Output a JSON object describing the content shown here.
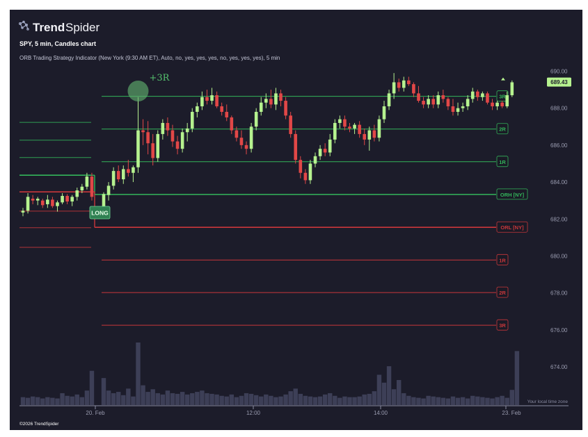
{
  "header": {
    "brand": "TrendSpider",
    "brand_bold": "Trend",
    "brand_light": "Spider",
    "subtitle": "SPY, 5 min, Candles chart",
    "indicator": "ORB Trading Strategy Indicator (New York (9:30 AM ET), Auto, no, yes, yes, yes, no, yes, yes, yes), 5 min"
  },
  "footer": {
    "copyright": "©2026 TrendSpider",
    "timezone_note": "Your local time zone"
  },
  "colors": {
    "background": "#1c1c2a",
    "bullish": "#b6f28f",
    "bearish": "#e14747",
    "orb_green": "#33b55a",
    "orb_red": "#c9373b",
    "volume": "#3d3f57",
    "price_tag": "#b6f28f"
  },
  "chart_data": {
    "type": "candlestick",
    "symbol": "SPY",
    "interval": "5 min",
    "ylim": [
      673.0,
      690.6
    ],
    "y_ticks": [
      "690.00",
      "688.00",
      "686.00",
      "684.00",
      "682.00",
      "680.00",
      "678.00",
      "676.00",
      "674.00"
    ],
    "x_ticks": [
      "20. Feb",
      "12:00",
      "14:00",
      "23. Feb"
    ],
    "current_price": "689.43",
    "marker_label": "LONG",
    "target_label": "+3R",
    "prev_day_candles": [
      {
        "o": 682.35,
        "h": 682.6,
        "l": 682.15,
        "c": 682.45
      },
      {
        "o": 682.45,
        "h": 683.4,
        "l": 682.3,
        "c": 683.2
      },
      {
        "o": 683.1,
        "h": 683.3,
        "l": 682.8,
        "c": 683.0
      },
      {
        "o": 683.0,
        "h": 683.2,
        "l": 682.75,
        "c": 683.1
      },
      {
        "o": 683.0,
        "h": 683.1,
        "l": 682.6,
        "c": 682.75
      },
      {
        "o": 682.8,
        "h": 683.3,
        "l": 682.6,
        "c": 683.05
      },
      {
        "o": 683.05,
        "h": 683.2,
        "l": 682.6,
        "c": 682.7
      },
      {
        "o": 682.7,
        "h": 683.0,
        "l": 682.4,
        "c": 682.9
      },
      {
        "o": 682.9,
        "h": 683.4,
        "l": 682.8,
        "c": 683.25
      },
      {
        "o": 683.25,
        "h": 683.35,
        "l": 682.8,
        "c": 682.95
      },
      {
        "o": 682.95,
        "h": 683.3,
        "l": 682.7,
        "c": 683.2
      },
      {
        "o": 683.2,
        "h": 683.7,
        "l": 683.0,
        "c": 683.55
      },
      {
        "o": 683.55,
        "h": 683.9,
        "l": 683.4,
        "c": 683.75
      },
      {
        "o": 683.75,
        "h": 684.5,
        "l": 683.6,
        "c": 684.3
      },
      {
        "o": 684.3,
        "h": 684.5,
        "l": 683.0,
        "c": 683.2
      }
    ],
    "day_candles": [
      {
        "o": 682.4,
        "h": 683.45,
        "l": 682.1,
        "c": 683.35
      },
      {
        "o": 683.3,
        "h": 684.0,
        "l": 683.0,
        "c": 683.8
      },
      {
        "o": 683.8,
        "h": 684.8,
        "l": 683.6,
        "c": 684.6
      },
      {
        "o": 684.6,
        "h": 684.9,
        "l": 684.0,
        "c": 684.15
      },
      {
        "o": 684.15,
        "h": 684.9,
        "l": 683.9,
        "c": 684.7
      },
      {
        "o": 684.7,
        "h": 685.2,
        "l": 684.3,
        "c": 684.5
      },
      {
        "o": 684.5,
        "h": 684.9,
        "l": 684.0,
        "c": 684.8
      },
      {
        "o": 684.8,
        "h": 688.6,
        "l": 684.5,
        "c": 686.8
      },
      {
        "o": 686.8,
        "h": 687.4,
        "l": 686.0,
        "c": 686.7
      },
      {
        "o": 686.7,
        "h": 687.3,
        "l": 685.5,
        "c": 686.1
      },
      {
        "o": 686.1,
        "h": 686.6,
        "l": 684.9,
        "c": 685.3
      },
      {
        "o": 685.3,
        "h": 686.8,
        "l": 685.1,
        "c": 686.6
      },
      {
        "o": 686.6,
        "h": 687.4,
        "l": 686.3,
        "c": 687.2
      },
      {
        "o": 687.2,
        "h": 687.5,
        "l": 686.5,
        "c": 686.8
      },
      {
        "o": 686.8,
        "h": 687.1,
        "l": 685.9,
        "c": 686.2
      },
      {
        "o": 686.2,
        "h": 686.5,
        "l": 685.5,
        "c": 685.8
      },
      {
        "o": 685.8,
        "h": 686.9,
        "l": 685.6,
        "c": 686.7
      },
      {
        "o": 686.7,
        "h": 687.2,
        "l": 686.2,
        "c": 686.9
      },
      {
        "o": 686.9,
        "h": 688.0,
        "l": 686.7,
        "c": 687.8
      },
      {
        "o": 687.8,
        "h": 688.3,
        "l": 687.5,
        "c": 688.1
      },
      {
        "o": 688.1,
        "h": 688.9,
        "l": 687.9,
        "c": 688.6
      },
      {
        "o": 688.6,
        "h": 689.0,
        "l": 688.2,
        "c": 688.4
      },
      {
        "o": 688.4,
        "h": 689.1,
        "l": 688.2,
        "c": 688.7
      },
      {
        "o": 688.7,
        "h": 688.9,
        "l": 688.0,
        "c": 688.1
      },
      {
        "o": 688.1,
        "h": 688.3,
        "l": 687.6,
        "c": 687.8
      },
      {
        "o": 687.8,
        "h": 688.2,
        "l": 687.3,
        "c": 687.5
      },
      {
        "o": 687.5,
        "h": 687.6,
        "l": 686.6,
        "c": 686.8
      },
      {
        "o": 686.8,
        "h": 687.0,
        "l": 686.2,
        "c": 686.4
      },
      {
        "o": 686.4,
        "h": 686.8,
        "l": 685.8,
        "c": 686.0
      },
      {
        "o": 686.0,
        "h": 686.2,
        "l": 685.5,
        "c": 685.8
      },
      {
        "o": 685.8,
        "h": 687.2,
        "l": 685.6,
        "c": 687.0
      },
      {
        "o": 687.0,
        "h": 688.0,
        "l": 686.8,
        "c": 687.8
      },
      {
        "o": 687.8,
        "h": 688.6,
        "l": 687.6,
        "c": 688.3
      },
      {
        "o": 688.3,
        "h": 688.8,
        "l": 688.0,
        "c": 688.5
      },
      {
        "o": 688.5,
        "h": 689.0,
        "l": 688.0,
        "c": 688.2
      },
      {
        "o": 688.2,
        "h": 689.1,
        "l": 687.9,
        "c": 688.8
      },
      {
        "o": 688.8,
        "h": 689.0,
        "l": 688.1,
        "c": 688.4
      },
      {
        "o": 688.4,
        "h": 688.6,
        "l": 687.4,
        "c": 687.6
      },
      {
        "o": 687.6,
        "h": 687.8,
        "l": 686.4,
        "c": 686.6
      },
      {
        "o": 686.6,
        "h": 686.8,
        "l": 685.0,
        "c": 685.2
      },
      {
        "o": 685.2,
        "h": 685.4,
        "l": 684.2,
        "c": 684.5
      },
      {
        "o": 684.5,
        "h": 684.7,
        "l": 683.9,
        "c": 684.1
      },
      {
        "o": 684.1,
        "h": 685.2,
        "l": 683.9,
        "c": 685.0
      },
      {
        "o": 685.0,
        "h": 685.6,
        "l": 684.8,
        "c": 685.4
      },
      {
        "o": 685.4,
        "h": 686.0,
        "l": 685.2,
        "c": 685.8
      },
      {
        "o": 685.8,
        "h": 686.1,
        "l": 685.4,
        "c": 685.6
      },
      {
        "o": 685.6,
        "h": 686.6,
        "l": 685.4,
        "c": 686.3
      },
      {
        "o": 686.3,
        "h": 687.4,
        "l": 686.1,
        "c": 687.2
      },
      {
        "o": 687.2,
        "h": 687.6,
        "l": 686.9,
        "c": 687.4
      },
      {
        "o": 687.4,
        "h": 687.6,
        "l": 686.8,
        "c": 687.0
      },
      {
        "o": 687.0,
        "h": 687.2,
        "l": 686.7,
        "c": 686.9
      },
      {
        "o": 686.9,
        "h": 687.2,
        "l": 686.6,
        "c": 687.1
      },
      {
        "o": 687.1,
        "h": 687.3,
        "l": 686.4,
        "c": 686.6
      },
      {
        "o": 686.6,
        "h": 686.9,
        "l": 686.0,
        "c": 686.3
      },
      {
        "o": 686.3,
        "h": 687.0,
        "l": 685.7,
        "c": 686.8
      },
      {
        "o": 686.8,
        "h": 687.1,
        "l": 686.2,
        "c": 686.4
      },
      {
        "o": 686.4,
        "h": 687.6,
        "l": 686.2,
        "c": 687.4
      },
      {
        "o": 687.4,
        "h": 688.4,
        "l": 687.2,
        "c": 688.1
      },
      {
        "o": 688.1,
        "h": 689.0,
        "l": 687.9,
        "c": 688.8
      },
      {
        "o": 688.8,
        "h": 689.9,
        "l": 688.5,
        "c": 689.4
      },
      {
        "o": 689.4,
        "h": 689.6,
        "l": 688.9,
        "c": 689.1
      },
      {
        "o": 689.1,
        "h": 689.7,
        "l": 688.9,
        "c": 689.5
      },
      {
        "o": 689.5,
        "h": 689.7,
        "l": 689.2,
        "c": 689.3
      },
      {
        "o": 689.3,
        "h": 689.4,
        "l": 688.6,
        "c": 688.8
      },
      {
        "o": 688.8,
        "h": 689.2,
        "l": 688.3,
        "c": 688.4
      },
      {
        "o": 688.4,
        "h": 688.6,
        "l": 688.0,
        "c": 688.2
      },
      {
        "o": 688.2,
        "h": 688.7,
        "l": 688.0,
        "c": 688.5
      },
      {
        "o": 688.5,
        "h": 688.7,
        "l": 688.0,
        "c": 688.2
      },
      {
        "o": 688.2,
        "h": 688.9,
        "l": 688.0,
        "c": 688.7
      },
      {
        "o": 688.7,
        "h": 689.0,
        "l": 688.3,
        "c": 688.5
      },
      {
        "o": 688.5,
        "h": 688.6,
        "l": 687.9,
        "c": 688.1
      },
      {
        "o": 688.1,
        "h": 688.5,
        "l": 687.6,
        "c": 687.8
      },
      {
        "o": 687.8,
        "h": 688.3,
        "l": 687.6,
        "c": 688.0
      },
      {
        "o": 688.0,
        "h": 688.3,
        "l": 687.8,
        "c": 688.1
      },
      {
        "o": 688.1,
        "h": 688.7,
        "l": 687.9,
        "c": 688.5
      },
      {
        "o": 688.5,
        "h": 689.1,
        "l": 688.3,
        "c": 688.9
      },
      {
        "o": 688.9,
        "h": 689.0,
        "l": 688.4,
        "c": 688.6
      },
      {
        "o": 688.6,
        "h": 688.9,
        "l": 688.4,
        "c": 688.8
      },
      {
        "o": 688.8,
        "h": 688.9,
        "l": 688.2,
        "c": 688.3
      },
      {
        "o": 688.3,
        "h": 688.5,
        "l": 687.9,
        "c": 688.1
      },
      {
        "o": 688.1,
        "h": 688.4,
        "l": 687.9,
        "c": 688.3
      },
      {
        "o": 688.3,
        "h": 688.4,
        "l": 688.0,
        "c": 688.1
      },
      {
        "o": 688.1,
        "h": 688.9,
        "l": 688.0,
        "c": 688.7
      },
      {
        "o": 688.7,
        "h": 689.5,
        "l": 688.6,
        "c": 689.4
      }
    ],
    "volume_prev": [
      12,
      11,
      13,
      12,
      10,
      12,
      11,
      10,
      18,
      14,
      13,
      16,
      12,
      22,
      52
    ],
    "volume_day": [
      41,
      22,
      18,
      20,
      15,
      25,
      13,
      95,
      30,
      20,
      24,
      18,
      16,
      22,
      18,
      17,
      20,
      16,
      18,
      20,
      22,
      18,
      17,
      16,
      14,
      13,
      16,
      12,
      14,
      18,
      17,
      15,
      13,
      16,
      14,
      12,
      13,
      16,
      21,
      25,
      17,
      14,
      13,
      12,
      13,
      16,
      18,
      14,
      11,
      13,
      12,
      12,
      13,
      16,
      17,
      21,
      46,
      34,
      59,
      24,
      38,
      18,
      14,
      12,
      11,
      10,
      14,
      13,
      12,
      11,
      10,
      13,
      11,
      12,
      10,
      14,
      13,
      12,
      11,
      10,
      12,
      14,
      11,
      23,
      82
    ],
    "volume_max": 95,
    "orb_levels": {
      "orh": 683.33,
      "orl": 681.55,
      "targets_up": [
        685.1,
        686.87,
        688.64
      ],
      "targets_down": [
        679.78,
        678.02,
        676.25
      ],
      "orh_label": "ORH [NY]",
      "orl_label": "ORL [NY]",
      "up_labels": [
        "1R",
        "2R",
        "3R"
      ],
      "down_labels": [
        "1R",
        "2R",
        "3R"
      ],
      "prev_green_levels": [
        684.37,
        685.33,
        686.27,
        687.23
      ],
      "prev_red_levels": [
        683.47,
        682.43,
        681.53,
        680.47
      ]
    }
  }
}
